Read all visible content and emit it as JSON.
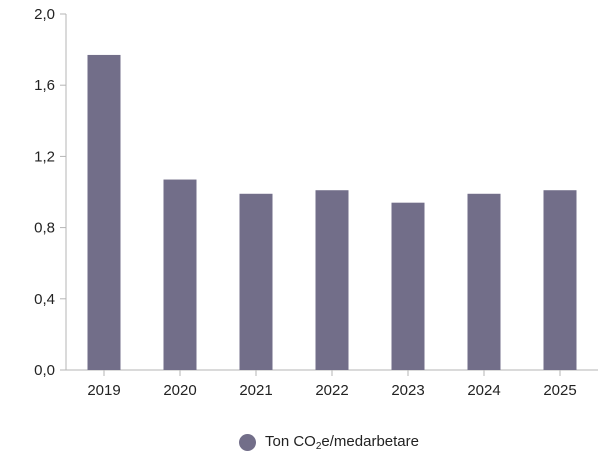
{
  "chart_data": {
    "type": "bar",
    "categories": [
      "2019",
      "2020",
      "2021",
      "2022",
      "2023",
      "2024",
      "2025"
    ],
    "series": [
      {
        "values": [
          1.77,
          1.07,
          0.99,
          1.01,
          0.94,
          0.99,
          1.01
        ],
        "color": "#726e89"
      }
    ],
    "ylim": [
      0,
      2.0
    ],
    "yticks": [
      "0,0",
      "0,4",
      "0,8",
      "1,2",
      "1,6",
      "2,0"
    ],
    "grid": false,
    "legend": {
      "placement": "bottom",
      "text_main": "Ton CO",
      "text_sub": "2",
      "text_tail": "e/medarbetare"
    },
    "colors": {
      "bar": "#726e89",
      "axis": "#b5b5b5",
      "text": "#222222"
    }
  }
}
